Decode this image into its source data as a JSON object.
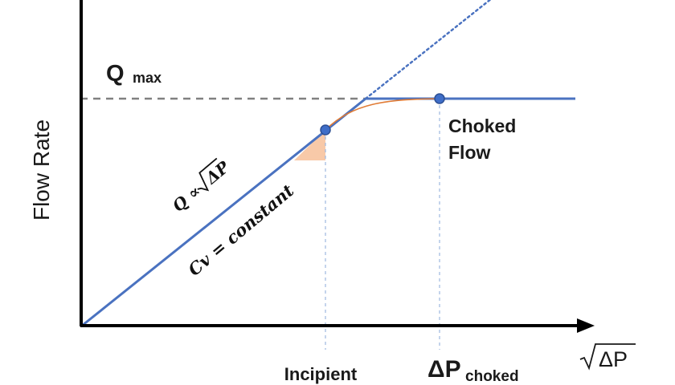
{
  "diagram": {
    "y_axis_label": "Flow Rate",
    "q_max_label": {
      "main": "Q",
      "sub": "max"
    },
    "proportional_label": {
      "prefix": "Q ∝ ",
      "radicand": "ΔP"
    },
    "constant_label": "Cv = constant",
    "choked_label": {
      "line1": "Choked",
      "line2": "Flow"
    },
    "incipient_label": "Incipient",
    "dp_choked_label": {
      "main": "ΔP",
      "sub": "choked"
    },
    "x_axis_label": {
      "radicand": "ΔP"
    }
  },
  "colors": {
    "axis": "#000000",
    "line": "#4a72c0",
    "point": "#3f6ec8",
    "point_stroke": "#2c4f94",
    "qmax_dash": "#808080",
    "transition_curve": "#e07b35",
    "highlight_fill": "#f8c9a8",
    "guide_dash": "#9db8e0",
    "extension_dotted": "#4a72c0"
  }
}
